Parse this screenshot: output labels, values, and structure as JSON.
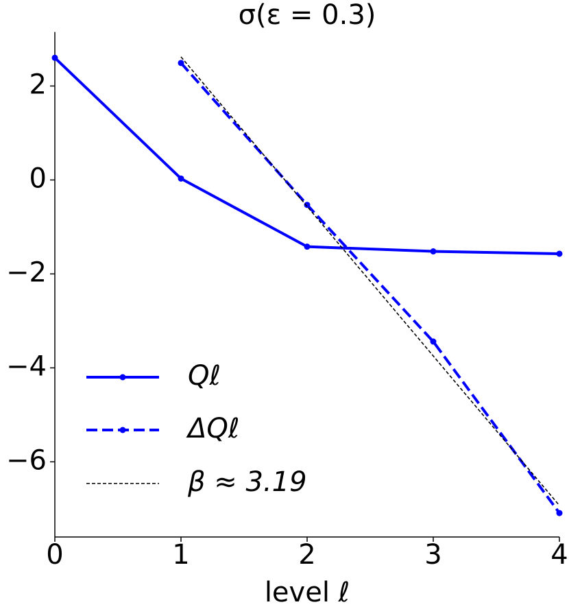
{
  "chart_data": {
    "type": "line",
    "title": "σ(ε = 0.3)",
    "xlabel": "level ℓ",
    "x": [
      0,
      1,
      2,
      3,
      4
    ],
    "series": [
      {
        "name": "Qℓ",
        "color": "#0000ff",
        "style": "solid",
        "marker": true,
        "x": [
          0,
          1,
          2,
          3,
          4
        ],
        "values": [
          2.6,
          0.03,
          -1.42,
          -1.52,
          -1.57
        ]
      },
      {
        "name": "ΔQℓ",
        "color": "#0000ff",
        "style": "dashed",
        "marker": true,
        "x": [
          1,
          2,
          3,
          4
        ],
        "values": [
          2.49,
          -0.53,
          -3.44,
          -7.09
        ]
      },
      {
        "name": "β ≈ 3.19",
        "color": "#000000",
        "style": "dotted",
        "marker": false,
        "x": [
          1,
          4
        ],
        "values": [
          2.62,
          -6.93
        ]
      }
    ],
    "xlim": [
      0,
      4
    ],
    "xticks": [
      0,
      1,
      2,
      3,
      4
    ],
    "ylim": [
      -7.6,
      3.15
    ],
    "yticks": [
      {
        "value": -6,
        "label": "−6"
      },
      {
        "value": -4,
        "label": "−4"
      },
      {
        "value": -2,
        "label": "−2"
      },
      0,
      2
    ],
    "legend": "lower left",
    "grid": false
  }
}
